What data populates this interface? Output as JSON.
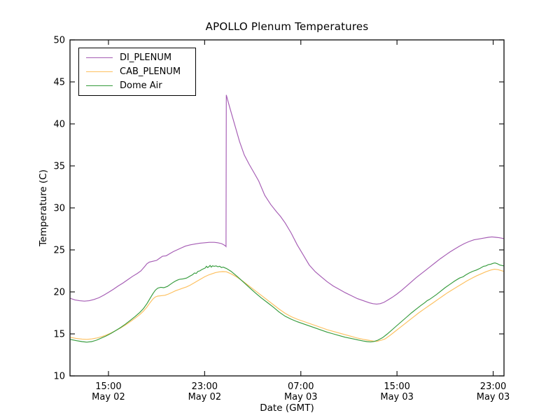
{
  "chart_data": {
    "type": "line",
    "title": "APOLLO Plenum Temperatures",
    "xlabel": "Date (GMT)",
    "ylabel": "Temperature (C)",
    "x_unit": "hours_since_May02_00:00_GMT",
    "xlim": [
      11.8,
      47.9
    ],
    "ylim": [
      10,
      50
    ],
    "grid": false,
    "legend_position": "upper-left",
    "yticks": [
      10,
      15,
      20,
      25,
      30,
      35,
      40,
      45,
      50
    ],
    "xticks": [
      {
        "hour": 15,
        "time": "15:00",
        "date": "May 02"
      },
      {
        "hour": 23,
        "time": "23:00",
        "date": "May 02"
      },
      {
        "hour": 31,
        "time": "07:00",
        "date": "May 03"
      },
      {
        "hour": 39,
        "time": "15:00",
        "date": "May 03"
      },
      {
        "hour": 47,
        "time": "23:00",
        "date": "May 03"
      }
    ],
    "series": [
      {
        "name": "DI_PLENUM",
        "color": "#a55cb4",
        "points": [
          [
            11.8,
            19.25
          ],
          [
            12.2,
            19.05
          ],
          [
            12.6,
            18.95
          ],
          [
            13.0,
            18.9
          ],
          [
            13.4,
            18.95
          ],
          [
            13.8,
            19.1
          ],
          [
            14.2,
            19.3
          ],
          [
            14.6,
            19.6
          ],
          [
            15.0,
            19.95
          ],
          [
            15.4,
            20.3
          ],
          [
            15.8,
            20.7
          ],
          [
            16.2,
            21.05
          ],
          [
            16.6,
            21.45
          ],
          [
            17.0,
            21.85
          ],
          [
            17.4,
            22.2
          ],
          [
            17.7,
            22.5
          ],
          [
            18.0,
            23.0
          ],
          [
            18.2,
            23.35
          ],
          [
            18.4,
            23.55
          ],
          [
            18.7,
            23.65
          ],
          [
            19.0,
            23.75
          ],
          [
            19.3,
            24.05
          ],
          [
            19.5,
            24.25
          ],
          [
            19.8,
            24.3
          ],
          [
            20.1,
            24.55
          ],
          [
            20.4,
            24.8
          ],
          [
            20.7,
            25.0
          ],
          [
            21.0,
            25.2
          ],
          [
            21.4,
            25.45
          ],
          [
            21.8,
            25.6
          ],
          [
            22.2,
            25.7
          ],
          [
            22.6,
            25.8
          ],
          [
            23.0,
            25.85
          ],
          [
            23.4,
            25.9
          ],
          [
            23.8,
            25.9
          ],
          [
            24.1,
            25.85
          ],
          [
            24.4,
            25.75
          ],
          [
            24.6,
            25.6
          ],
          [
            24.75,
            25.45
          ],
          [
            24.78,
            25.4
          ],
          [
            24.8,
            43.45
          ],
          [
            25.0,
            42.4
          ],
          [
            25.2,
            41.4
          ],
          [
            25.5,
            39.9
          ],
          [
            25.9,
            37.9
          ],
          [
            26.3,
            36.3
          ],
          [
            26.7,
            35.2
          ],
          [
            27.1,
            34.2
          ],
          [
            27.5,
            33.2
          ],
          [
            28.0,
            31.5
          ],
          [
            28.5,
            30.4
          ],
          [
            29.0,
            29.5
          ],
          [
            29.3,
            29.0
          ],
          [
            29.7,
            28.2
          ],
          [
            30.2,
            27.0
          ],
          [
            30.7,
            25.6
          ],
          [
            31.2,
            24.4
          ],
          [
            31.7,
            23.2
          ],
          [
            32.2,
            22.4
          ],
          [
            32.7,
            21.8
          ],
          [
            33.2,
            21.2
          ],
          [
            33.7,
            20.7
          ],
          [
            34.2,
            20.3
          ],
          [
            34.7,
            19.9
          ],
          [
            35.2,
            19.55
          ],
          [
            35.7,
            19.2
          ],
          [
            36.2,
            18.95
          ],
          [
            36.7,
            18.7
          ],
          [
            37.0,
            18.6
          ],
          [
            37.3,
            18.55
          ],
          [
            37.6,
            18.6
          ],
          [
            37.9,
            18.75
          ],
          [
            38.2,
            19.0
          ],
          [
            38.6,
            19.35
          ],
          [
            39.0,
            19.75
          ],
          [
            39.4,
            20.2
          ],
          [
            39.8,
            20.7
          ],
          [
            40.2,
            21.2
          ],
          [
            40.6,
            21.7
          ],
          [
            41.0,
            22.15
          ],
          [
            41.4,
            22.6
          ],
          [
            41.8,
            23.05
          ],
          [
            42.2,
            23.5
          ],
          [
            42.6,
            23.95
          ],
          [
            43.0,
            24.35
          ],
          [
            43.4,
            24.75
          ],
          [
            43.8,
            25.1
          ],
          [
            44.2,
            25.45
          ],
          [
            44.6,
            25.75
          ],
          [
            45.0,
            26.0
          ],
          [
            45.4,
            26.2
          ],
          [
            45.8,
            26.3
          ],
          [
            46.2,
            26.4
          ],
          [
            46.6,
            26.5
          ],
          [
            46.9,
            26.55
          ],
          [
            47.2,
            26.5
          ],
          [
            47.5,
            26.45
          ],
          [
            47.87,
            26.35
          ]
        ]
      },
      {
        "name": "CAB_PLENUM",
        "color": "#fdc05f",
        "points": [
          [
            11.8,
            14.6
          ],
          [
            12.3,
            14.47
          ],
          [
            12.8,
            14.38
          ],
          [
            13.2,
            14.35
          ],
          [
            13.6,
            14.4
          ],
          [
            14.0,
            14.5
          ],
          [
            14.4,
            14.65
          ],
          [
            14.8,
            14.85
          ],
          [
            15.2,
            15.1
          ],
          [
            15.6,
            15.4
          ],
          [
            16.0,
            15.7
          ],
          [
            16.4,
            16.05
          ],
          [
            16.8,
            16.45
          ],
          [
            17.2,
            16.85
          ],
          [
            17.6,
            17.3
          ],
          [
            17.9,
            17.7
          ],
          [
            18.2,
            18.2
          ],
          [
            18.45,
            18.7
          ],
          [
            18.7,
            19.15
          ],
          [
            18.9,
            19.4
          ],
          [
            19.1,
            19.5
          ],
          [
            19.4,
            19.55
          ],
          [
            19.7,
            19.6
          ],
          [
            20.0,
            19.75
          ],
          [
            20.3,
            19.95
          ],
          [
            20.6,
            20.15
          ],
          [
            20.9,
            20.3
          ],
          [
            21.2,
            20.45
          ],
          [
            21.5,
            20.6
          ],
          [
            21.8,
            20.8
          ],
          [
            22.1,
            21.05
          ],
          [
            22.4,
            21.3
          ],
          [
            22.7,
            21.55
          ],
          [
            23.0,
            21.8
          ],
          [
            23.3,
            22.0
          ],
          [
            23.6,
            22.15
          ],
          [
            23.9,
            22.3
          ],
          [
            24.2,
            22.38
          ],
          [
            24.5,
            22.42
          ],
          [
            24.8,
            22.4
          ],
          [
            25.2,
            22.15
          ],
          [
            25.7,
            21.75
          ],
          [
            26.2,
            21.25
          ],
          [
            26.7,
            20.7
          ],
          [
            27.2,
            20.15
          ],
          [
            27.7,
            19.6
          ],
          [
            28.2,
            19.05
          ],
          [
            28.7,
            18.5
          ],
          [
            29.2,
            17.95
          ],
          [
            29.7,
            17.45
          ],
          [
            30.2,
            17.05
          ],
          [
            30.7,
            16.75
          ],
          [
            31.2,
            16.5
          ],
          [
            31.7,
            16.25
          ],
          [
            32.2,
            16.0
          ],
          [
            32.7,
            15.75
          ],
          [
            33.2,
            15.5
          ],
          [
            33.7,
            15.3
          ],
          [
            34.2,
            15.1
          ],
          [
            34.7,
            14.9
          ],
          [
            35.2,
            14.7
          ],
          [
            35.7,
            14.5
          ],
          [
            36.2,
            14.35
          ],
          [
            36.6,
            14.25
          ],
          [
            37.0,
            14.15
          ],
          [
            37.3,
            14.1
          ],
          [
            37.7,
            14.25
          ],
          [
            38.0,
            14.4
          ],
          [
            38.4,
            14.8
          ],
          [
            38.8,
            15.25
          ],
          [
            39.2,
            15.7
          ],
          [
            39.6,
            16.15
          ],
          [
            40.0,
            16.6
          ],
          [
            40.4,
            17.05
          ],
          [
            40.8,
            17.5
          ],
          [
            41.2,
            17.9
          ],
          [
            41.6,
            18.3
          ],
          [
            42.0,
            18.7
          ],
          [
            42.4,
            19.1
          ],
          [
            42.8,
            19.5
          ],
          [
            43.2,
            19.9
          ],
          [
            43.6,
            20.25
          ],
          [
            44.0,
            20.6
          ],
          [
            44.4,
            20.95
          ],
          [
            44.8,
            21.3
          ],
          [
            45.2,
            21.6
          ],
          [
            45.6,
            21.9
          ],
          [
            46.0,
            22.15
          ],
          [
            46.4,
            22.4
          ],
          [
            46.8,
            22.6
          ],
          [
            47.1,
            22.7
          ],
          [
            47.4,
            22.65
          ],
          [
            47.87,
            22.45
          ]
        ]
      },
      {
        "name": "Dome Air",
        "color": "#359b3c",
        "points": [
          [
            11.8,
            14.35
          ],
          [
            12.3,
            14.2
          ],
          [
            12.8,
            14.08
          ],
          [
            13.2,
            14.02
          ],
          [
            13.6,
            14.08
          ],
          [
            14.0,
            14.25
          ],
          [
            14.4,
            14.5
          ],
          [
            14.8,
            14.75
          ],
          [
            15.2,
            15.05
          ],
          [
            15.6,
            15.4
          ],
          [
            16.0,
            15.75
          ],
          [
            16.4,
            16.15
          ],
          [
            16.8,
            16.6
          ],
          [
            17.2,
            17.05
          ],
          [
            17.6,
            17.55
          ],
          [
            17.9,
            18.0
          ],
          [
            18.2,
            18.6
          ],
          [
            18.45,
            19.2
          ],
          [
            18.7,
            19.8
          ],
          [
            18.9,
            20.2
          ],
          [
            19.1,
            20.45
          ],
          [
            19.35,
            20.55
          ],
          [
            19.6,
            20.5
          ],
          [
            19.9,
            20.65
          ],
          [
            20.15,
            20.9
          ],
          [
            20.4,
            21.15
          ],
          [
            20.65,
            21.35
          ],
          [
            20.9,
            21.5
          ],
          [
            21.2,
            21.55
          ],
          [
            21.5,
            21.65
          ],
          [
            21.8,
            21.9
          ],
          [
            22.0,
            22.05
          ],
          [
            22.15,
            22.25
          ],
          [
            22.3,
            22.2
          ],
          [
            22.45,
            22.45
          ],
          [
            22.6,
            22.5
          ],
          [
            22.75,
            22.65
          ],
          [
            22.9,
            22.75
          ],
          [
            23.05,
            22.85
          ],
          [
            23.15,
            23.05
          ],
          [
            23.25,
            22.9
          ],
          [
            23.35,
            23.0
          ],
          [
            23.45,
            23.15
          ],
          [
            23.55,
            22.95
          ],
          [
            23.65,
            23.1
          ],
          [
            23.8,
            23.05
          ],
          [
            23.95,
            23.1
          ],
          [
            24.1,
            23.0
          ],
          [
            24.25,
            23.05
          ],
          [
            24.4,
            22.9
          ],
          [
            24.55,
            22.95
          ],
          [
            24.7,
            22.85
          ],
          [
            24.8,
            22.8
          ],
          [
            25.2,
            22.45
          ],
          [
            25.7,
            21.85
          ],
          [
            26.2,
            21.2
          ],
          [
            26.7,
            20.55
          ],
          [
            27.2,
            19.9
          ],
          [
            27.7,
            19.3
          ],
          [
            28.2,
            18.75
          ],
          [
            28.7,
            18.2
          ],
          [
            29.2,
            17.6
          ],
          [
            29.7,
            17.1
          ],
          [
            30.2,
            16.75
          ],
          [
            30.7,
            16.45
          ],
          [
            31.2,
            16.2
          ],
          [
            31.7,
            15.95
          ],
          [
            32.2,
            15.7
          ],
          [
            32.7,
            15.45
          ],
          [
            33.2,
            15.2
          ],
          [
            33.7,
            15.0
          ],
          [
            34.2,
            14.8
          ],
          [
            34.7,
            14.6
          ],
          [
            35.2,
            14.45
          ],
          [
            35.7,
            14.3
          ],
          [
            36.2,
            14.15
          ],
          [
            36.5,
            14.08
          ],
          [
            36.8,
            14.05
          ],
          [
            37.1,
            14.1
          ],
          [
            37.4,
            14.25
          ],
          [
            37.8,
            14.55
          ],
          [
            38.2,
            15.0
          ],
          [
            38.6,
            15.5
          ],
          [
            39.0,
            16.0
          ],
          [
            39.4,
            16.5
          ],
          [
            39.8,
            17.0
          ],
          [
            40.2,
            17.5
          ],
          [
            40.6,
            17.95
          ],
          [
            41.0,
            18.4
          ],
          [
            41.3,
            18.7
          ],
          [
            41.5,
            18.95
          ],
          [
            41.7,
            19.1
          ],
          [
            42.0,
            19.4
          ],
          [
            42.3,
            19.7
          ],
          [
            42.6,
            20.05
          ],
          [
            43.0,
            20.5
          ],
          [
            43.4,
            20.9
          ],
          [
            43.8,
            21.3
          ],
          [
            44.2,
            21.65
          ],
          [
            44.5,
            21.8
          ],
          [
            44.7,
            22.0
          ],
          [
            45.0,
            22.25
          ],
          [
            45.3,
            22.45
          ],
          [
            45.6,
            22.6
          ],
          [
            45.9,
            22.8
          ],
          [
            46.2,
            23.05
          ],
          [
            46.4,
            23.1
          ],
          [
            46.6,
            23.25
          ],
          [
            46.8,
            23.3
          ],
          [
            47.0,
            23.4
          ],
          [
            47.15,
            23.45
          ],
          [
            47.35,
            23.35
          ],
          [
            47.55,
            23.2
          ],
          [
            47.87,
            23.1
          ]
        ]
      }
    ]
  }
}
